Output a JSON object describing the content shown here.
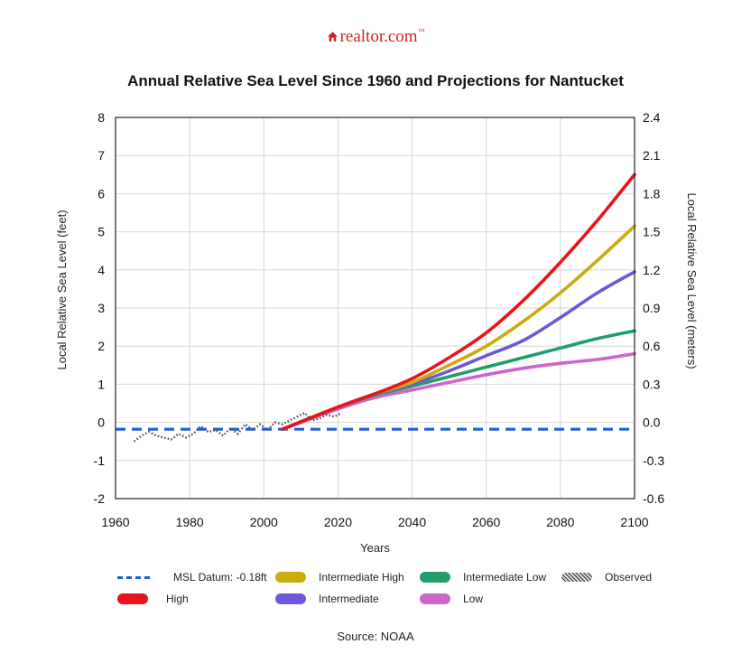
{
  "brand": {
    "name": "realtor.com",
    "tm": "™",
    "icon": "house-icon",
    "color": "#d42027"
  },
  "source": "Source: NOAA",
  "chart_data": {
    "type": "line",
    "title": "Annual Relative Sea Level Since 1960 and Projections for Nantucket",
    "xlabel": "Years",
    "ylabel": "Local Relative Sea Level (feet)",
    "y2label": "Local Relative Sea Level (meters)",
    "xlim": [
      1960,
      2100
    ],
    "ylim": [
      -2,
      8
    ],
    "y2lim": [
      -0.6,
      2.4
    ],
    "xticks": [
      "1960",
      "1980",
      "2000",
      "2020",
      "2040",
      "2060",
      "2080",
      "2100"
    ],
    "yticks": [
      "-2",
      "-1",
      "0",
      "1",
      "2",
      "3",
      "4",
      "5",
      "6",
      "7",
      "8"
    ],
    "y2ticks": [
      "-0.6",
      "-0.3",
      "0.0",
      "0.3",
      "0.6",
      "0.9",
      "1.2",
      "1.5",
      "1.8",
      "2.1",
      "2.4"
    ],
    "grid": true,
    "legend_position": "bottom",
    "datum": {
      "name": "MSL Datum: -0.18ft",
      "y": -0.18,
      "color": "#1a62d6"
    },
    "series": [
      {
        "name": "High",
        "color": "#e8141c",
        "x": [
          2005,
          2020,
          2030,
          2040,
          2050,
          2060,
          2070,
          2080,
          2090,
          2100
        ],
        "y": [
          -0.18,
          0.4,
          0.75,
          1.15,
          1.7,
          2.35,
          3.2,
          4.2,
          5.3,
          6.5
        ]
      },
      {
        "name": "Intermediate High",
        "color": "#c9ac10",
        "x": [
          2005,
          2020,
          2030,
          2040,
          2050,
          2060,
          2070,
          2080,
          2090,
          2100
        ],
        "y": [
          -0.18,
          0.4,
          0.75,
          1.05,
          1.5,
          2.0,
          2.65,
          3.4,
          4.25,
          5.15
        ]
      },
      {
        "name": "Intermediate",
        "color": "#6f57d8",
        "x": [
          2005,
          2020,
          2030,
          2040,
          2050,
          2060,
          2070,
          2080,
          2090,
          2100
        ],
        "y": [
          -0.18,
          0.4,
          0.75,
          1.0,
          1.35,
          1.75,
          2.15,
          2.75,
          3.4,
          3.95
        ]
      },
      {
        "name": "Intermediate Low",
        "color": "#1f9e6b",
        "x": [
          2005,
          2020,
          2030,
          2040,
          2050,
          2060,
          2070,
          2080,
          2090,
          2100
        ],
        "y": [
          -0.18,
          0.4,
          0.72,
          0.95,
          1.2,
          1.45,
          1.7,
          1.95,
          2.2,
          2.4
        ]
      },
      {
        "name": "Low",
        "color": "#cc66cc",
        "x": [
          2005,
          2020,
          2030,
          2040,
          2050,
          2060,
          2070,
          2080,
          2090,
          2100
        ],
        "y": [
          -0.18,
          0.35,
          0.65,
          0.85,
          1.05,
          1.25,
          1.42,
          1.55,
          1.65,
          1.8
        ]
      },
      {
        "name": "Observed",
        "color": "#555555",
        "x": [
          1965,
          1967,
          1969,
          1971,
          1973,
          1975,
          1977,
          1979,
          1981,
          1983,
          1985,
          1987,
          1989,
          1991,
          1993,
          1995,
          1997,
          1999,
          2001,
          2003,
          2005,
          2007,
          2009,
          2011,
          2013,
          2015,
          2017,
          2019,
          2021
        ],
        "y": [
          -0.5,
          -0.35,
          -0.25,
          -0.35,
          -0.4,
          -0.45,
          -0.3,
          -0.4,
          -0.3,
          -0.1,
          -0.25,
          -0.2,
          -0.35,
          -0.15,
          -0.3,
          -0.05,
          -0.2,
          -0.05,
          -0.2,
          0.0,
          -0.05,
          0.05,
          0.15,
          0.25,
          0.05,
          0.1,
          0.2,
          0.15,
          0.25
        ]
      }
    ]
  }
}
